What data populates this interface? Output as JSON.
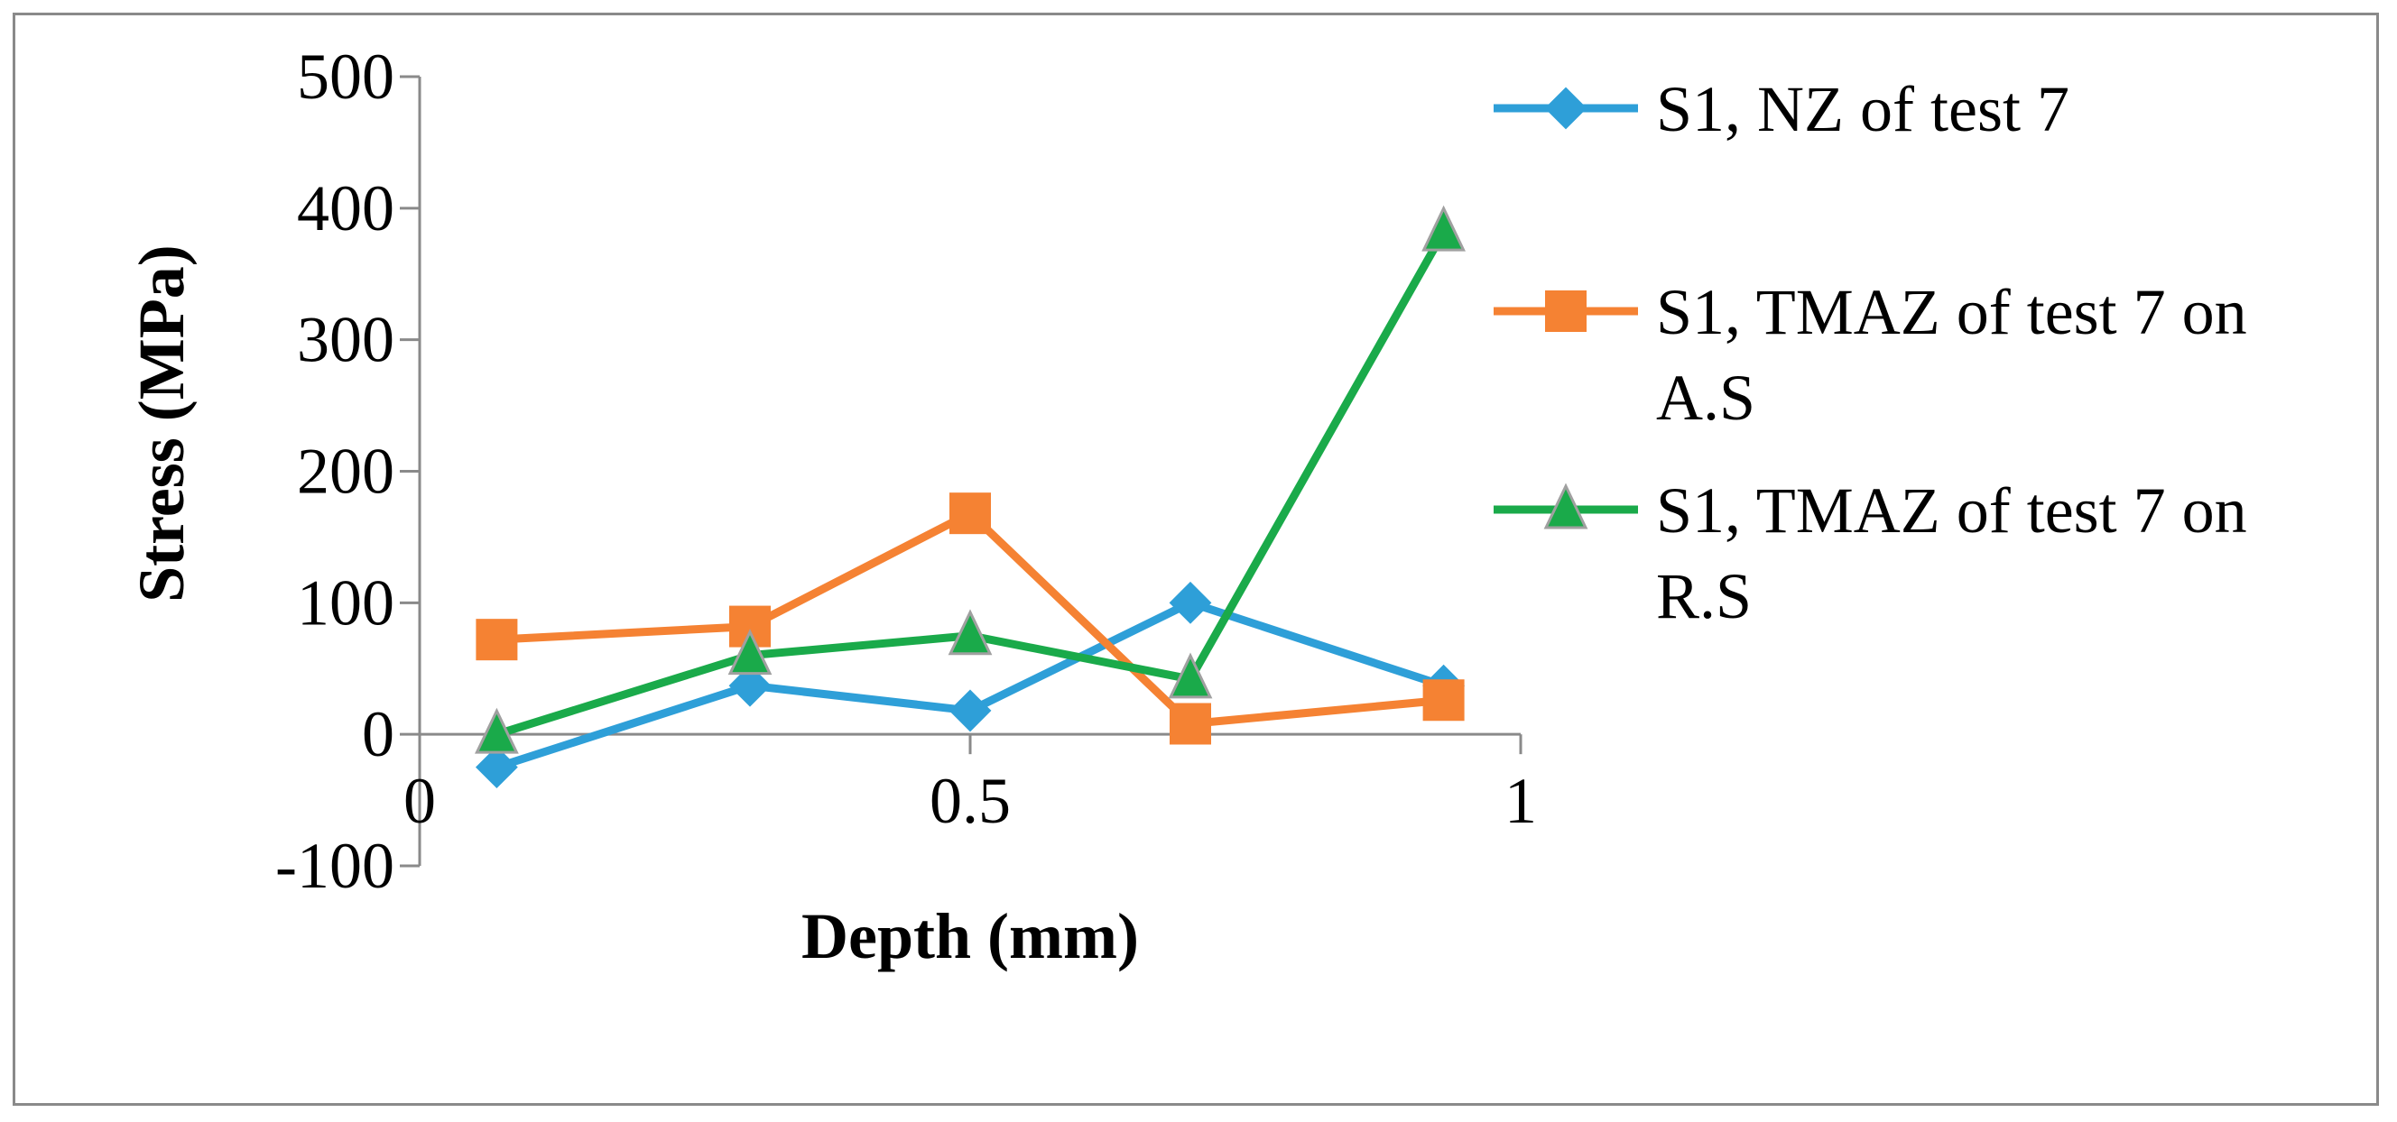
{
  "chart_data": {
    "type": "line",
    "xlabel": "Depth (mm)",
    "ylabel": "Stress (MPa)",
    "xlim": [
      0,
      1
    ],
    "ylim": [
      -100,
      500
    ],
    "x_ticks": [
      0,
      0.5,
      1
    ],
    "x_tick_labels": [
      "0",
      "0.5",
      "1"
    ],
    "y_ticks": [
      -100,
      0,
      100,
      200,
      300,
      400,
      500
    ],
    "y_tick_labels": [
      "-100",
      "0",
      "100",
      "200",
      "300",
      "400",
      "500"
    ],
    "grid": false,
    "legend_position": "right",
    "series": [
      {
        "name": "S1, NZ of test 7",
        "legend_lines": [
          "S1, NZ of test 7"
        ],
        "color": "#2e9fd8",
        "marker": "diamond",
        "x": [
          0.07,
          0.3,
          0.5,
          0.7,
          0.93
        ],
        "values": [
          -25,
          37,
          18,
          100,
          37
        ]
      },
      {
        "name": "S1, TMAZ of test 7 on A.S",
        "legend_lines": [
          "S1, TMAZ of test 7 on",
          "A.S"
        ],
        "color": "#f58233",
        "marker": "square",
        "x": [
          0.07,
          0.3,
          0.5,
          0.7,
          0.93
        ],
        "values": [
          72,
          82,
          168,
          8,
          26
        ]
      },
      {
        "name": "S1, TMAZ of test 7 on R.S",
        "legend_lines": [
          "S1, TMAZ of test 7 on",
          "R.S"
        ],
        "color": "#1aaa4a",
        "marker": "triangle",
        "x": [
          0.07,
          0.3,
          0.5,
          0.7,
          0.93
        ],
        "values": [
          0,
          60,
          75,
          42,
          382
        ]
      }
    ]
  }
}
